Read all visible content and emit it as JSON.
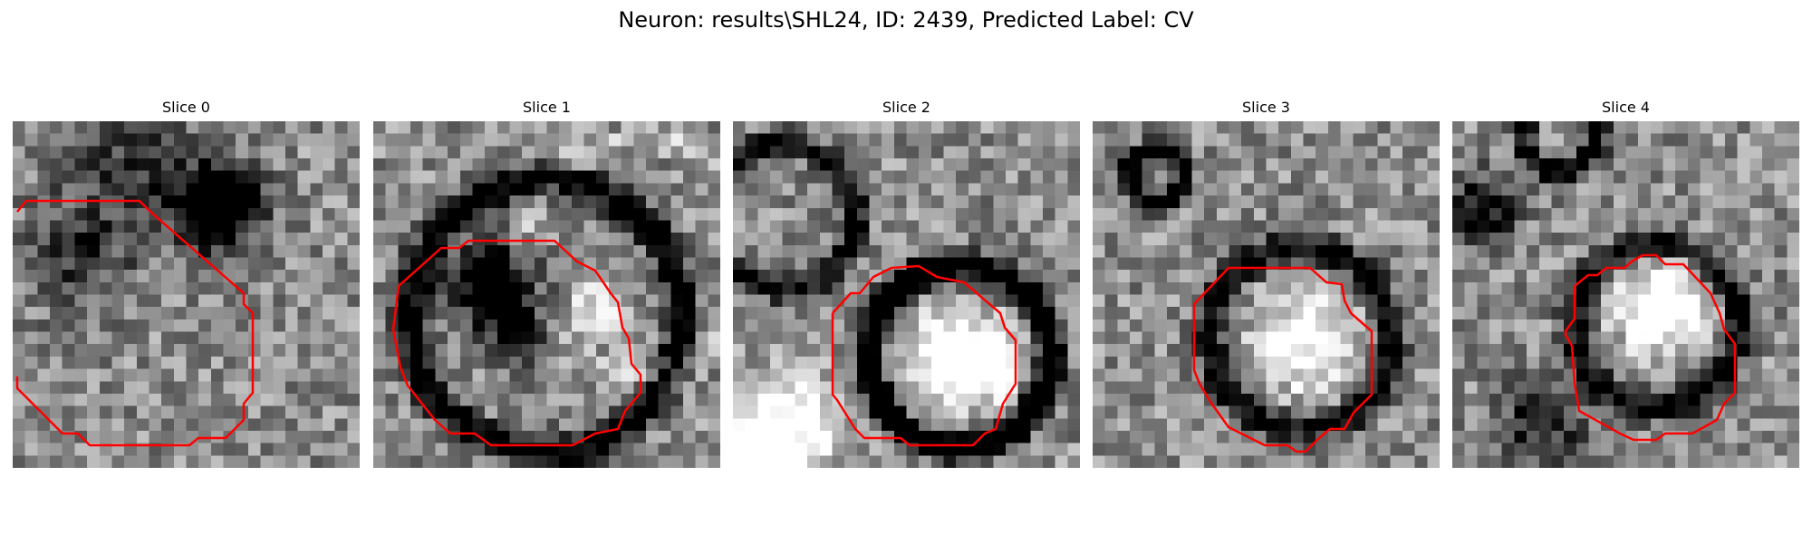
{
  "figure": {
    "title": "Neuron: results\\SHL24, ID: 2439, Predicted Label: CV"
  },
  "panels": [
    {
      "title": "Slice 0",
      "seed": 17
    },
    {
      "title": "Slice 1",
      "seed": 41
    },
    {
      "title": "Slice 2",
      "seed": 73
    },
    {
      "title": "Slice 3",
      "seed": 109
    },
    {
      "title": "Slice 4",
      "seed": 151
    }
  ],
  "colors": {
    "contour": "#ff0000",
    "background": "#ffffff"
  },
  "image": {
    "grid": 28,
    "colormap": "gray"
  }
}
